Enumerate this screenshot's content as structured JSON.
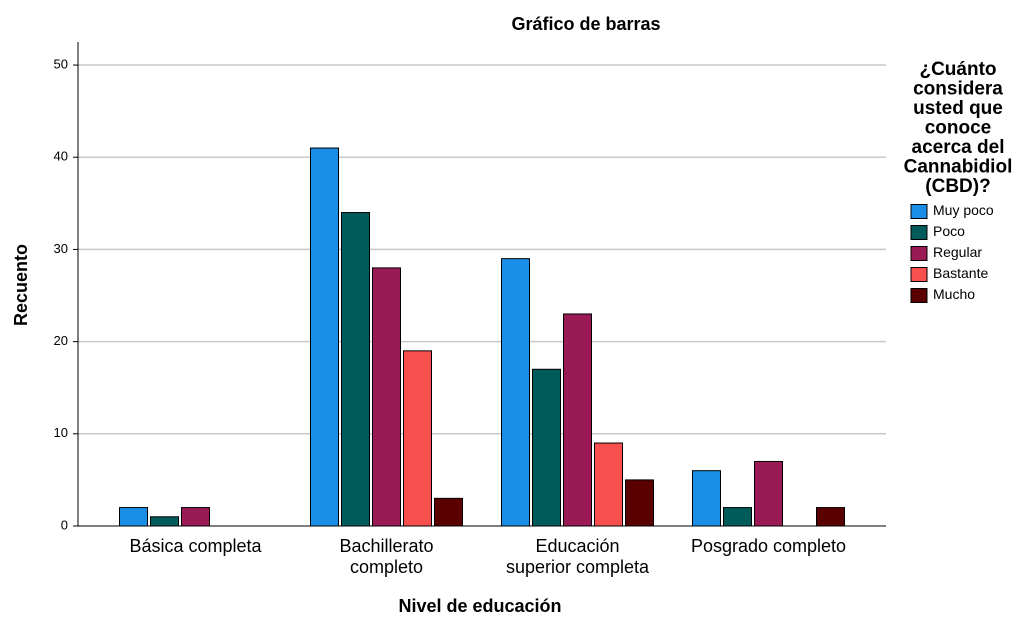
{
  "chart_data": {
    "type": "bar",
    "title": "Gráfico de barras",
    "x_label": "Nivel de educación",
    "y_label": "Recuento",
    "legend_title": "¿Cuánto considera usted que conoce acerca del Cannabidiol (CBD)?",
    "categories": [
      "Básica completa",
      "Bachillerato completo",
      "Educación superior completa",
      "Posgrado completo"
    ],
    "series": [
      {
        "name": "Muy poco",
        "color": "#1a8ee6",
        "values": [
          2,
          41,
          29,
          6
        ]
      },
      {
        "name": "Poco",
        "color": "#005b5b",
        "values": [
          1,
          34,
          17,
          2
        ]
      },
      {
        "name": "Regular",
        "color": "#9a1a55",
        "values": [
          2,
          28,
          23,
          7
        ]
      },
      {
        "name": "Bastante",
        "color": "#f84f4f",
        "values": [
          0,
          19,
          9,
          0
        ]
      },
      {
        "name": "Mucho",
        "color": "#5a0000",
        "values": [
          0,
          3,
          5,
          2
        ]
      }
    ],
    "ylim": [
      0,
      52.5
    ],
    "yticks": [
      0,
      10,
      20,
      30,
      40,
      50
    ],
    "grid": true,
    "legend": "right"
  }
}
